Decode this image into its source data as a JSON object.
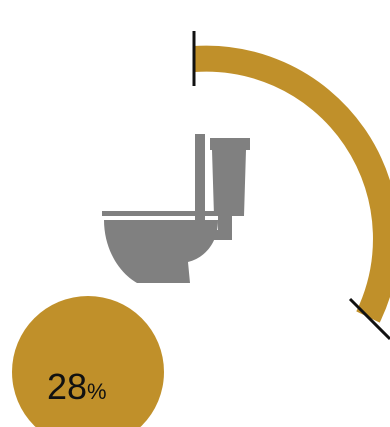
{
  "gauge": {
    "progress_percent": 28,
    "arc_color": "#c0902a",
    "marker_color": "#111111"
  },
  "icon": {
    "name": "toilet-icon",
    "color": "#808080"
  },
  "percent_badge": {
    "value": "28",
    "unit": "%",
    "color": "#c0902a"
  }
}
